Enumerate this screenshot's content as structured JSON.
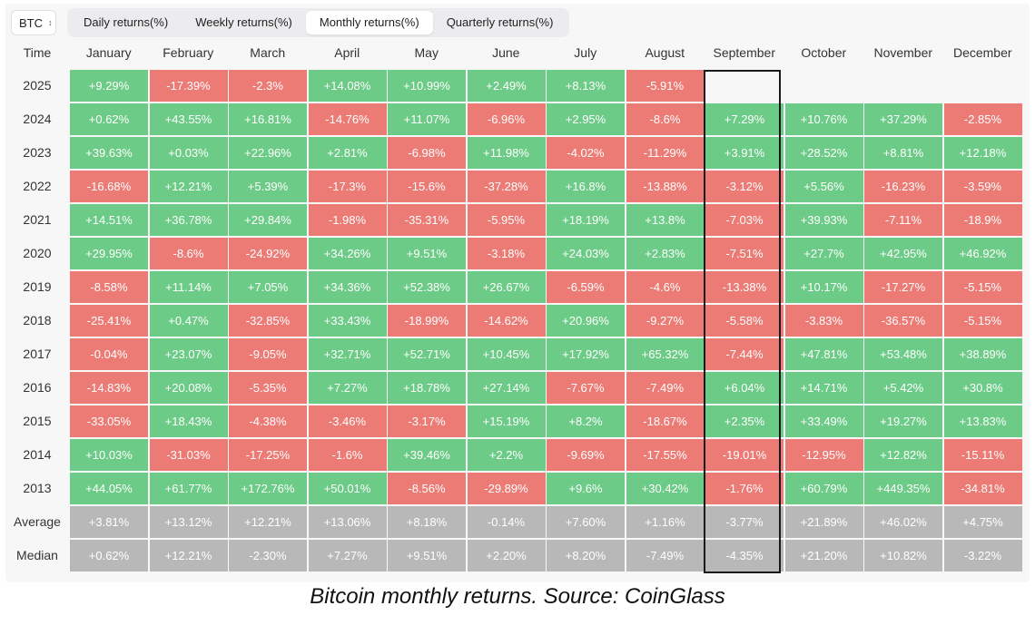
{
  "toolbar": {
    "asset": "BTC",
    "tabs": [
      {
        "label": "Daily returns(%)",
        "active": false
      },
      {
        "label": "Weekly returns(%)",
        "active": false
      },
      {
        "label": "Monthly returns(%)",
        "active": true
      },
      {
        "label": "Quarterly returns(%)",
        "active": false
      }
    ]
  },
  "colors": {
    "positive": "#6ccb86",
    "negative": "#ec7b75",
    "summary": "#b8b8b8"
  },
  "caption": "Bitcoin monthly returns. Source: CoinGlass",
  "chart_data": {
    "type": "heatmap",
    "corner_label": "Time",
    "columns": [
      "January",
      "February",
      "March",
      "April",
      "May",
      "June",
      "July",
      "August",
      "September",
      "October",
      "November",
      "December"
    ],
    "highlighted_column": "September",
    "rows": [
      {
        "label": "2025",
        "values": [
          "+9.29%",
          "-17.39%",
          "-2.3%",
          "+14.08%",
          "+10.99%",
          "+2.49%",
          "+8.13%",
          "-5.91%",
          "",
          "",
          "",
          ""
        ]
      },
      {
        "label": "2024",
        "values": [
          "+0.62%",
          "+43.55%",
          "+16.81%",
          "-14.76%",
          "+11.07%",
          "-6.96%",
          "+2.95%",
          "-8.6%",
          "+7.29%",
          "+10.76%",
          "+37.29%",
          "-2.85%"
        ]
      },
      {
        "label": "2023",
        "values": [
          "+39.63%",
          "+0.03%",
          "+22.96%",
          "+2.81%",
          "-6.98%",
          "+11.98%",
          "-4.02%",
          "-11.29%",
          "+3.91%",
          "+28.52%",
          "+8.81%",
          "+12.18%"
        ]
      },
      {
        "label": "2022",
        "values": [
          "-16.68%",
          "+12.21%",
          "+5.39%",
          "-17.3%",
          "-15.6%",
          "-37.28%",
          "+16.8%",
          "-13.88%",
          "-3.12%",
          "+5.56%",
          "-16.23%",
          "-3.59%"
        ]
      },
      {
        "label": "2021",
        "values": [
          "+14.51%",
          "+36.78%",
          "+29.84%",
          "-1.98%",
          "-35.31%",
          "-5.95%",
          "+18.19%",
          "+13.8%",
          "-7.03%",
          "+39.93%",
          "-7.11%",
          "-18.9%"
        ]
      },
      {
        "label": "2020",
        "values": [
          "+29.95%",
          "-8.6%",
          "-24.92%",
          "+34.26%",
          "+9.51%",
          "-3.18%",
          "+24.03%",
          "+2.83%",
          "-7.51%",
          "+27.7%",
          "+42.95%",
          "+46.92%"
        ]
      },
      {
        "label": "2019",
        "values": [
          "-8.58%",
          "+11.14%",
          "+7.05%",
          "+34.36%",
          "+52.38%",
          "+26.67%",
          "-6.59%",
          "-4.6%",
          "-13.38%",
          "+10.17%",
          "-17.27%",
          "-5.15%"
        ]
      },
      {
        "label": "2018",
        "values": [
          "-25.41%",
          "+0.47%",
          "-32.85%",
          "+33.43%",
          "-18.99%",
          "-14.62%",
          "+20.96%",
          "-9.27%",
          "-5.58%",
          "-3.83%",
          "-36.57%",
          "-5.15%"
        ]
      },
      {
        "label": "2017",
        "values": [
          "-0.04%",
          "+23.07%",
          "-9.05%",
          "+32.71%",
          "+52.71%",
          "+10.45%",
          "+17.92%",
          "+65.32%",
          "-7.44%",
          "+47.81%",
          "+53.48%",
          "+38.89%"
        ]
      },
      {
        "label": "2016",
        "values": [
          "-14.83%",
          "+20.08%",
          "-5.35%",
          "+7.27%",
          "+18.78%",
          "+27.14%",
          "-7.67%",
          "-7.49%",
          "+6.04%",
          "+14.71%",
          "+5.42%",
          "+30.8%"
        ]
      },
      {
        "label": "2015",
        "values": [
          "-33.05%",
          "+18.43%",
          "-4.38%",
          "-3.46%",
          "-3.17%",
          "+15.19%",
          "+8.2%",
          "-18.67%",
          "+2.35%",
          "+33.49%",
          "+19.27%",
          "+13.83%"
        ]
      },
      {
        "label": "2014",
        "values": [
          "+10.03%",
          "-31.03%",
          "-17.25%",
          "-1.6%",
          "+39.46%",
          "+2.2%",
          "-9.69%",
          "-17.55%",
          "-19.01%",
          "-12.95%",
          "+12.82%",
          "-15.11%"
        ]
      },
      {
        "label": "2013",
        "values": [
          "+44.05%",
          "+61.77%",
          "+172.76%",
          "+50.01%",
          "-8.56%",
          "-29.89%",
          "+9.6%",
          "+30.42%",
          "-1.76%",
          "+60.79%",
          "+449.35%",
          "-34.81%"
        ]
      }
    ],
    "summary_rows": [
      {
        "label": "Average",
        "values": [
          "+3.81%",
          "+13.12%",
          "+12.21%",
          "+13.06%",
          "+8.18%",
          "-0.14%",
          "+7.60%",
          "+1.16%",
          "-3.77%",
          "+21.89%",
          "+46.02%",
          "+4.75%"
        ]
      },
      {
        "label": "Median",
        "values": [
          "+0.62%",
          "+12.21%",
          "-2.30%",
          "+7.27%",
          "+9.51%",
          "+2.20%",
          "+8.20%",
          "-7.49%",
          "-4.35%",
          "+21.20%",
          "+10.82%",
          "-3.22%"
        ]
      }
    ]
  }
}
